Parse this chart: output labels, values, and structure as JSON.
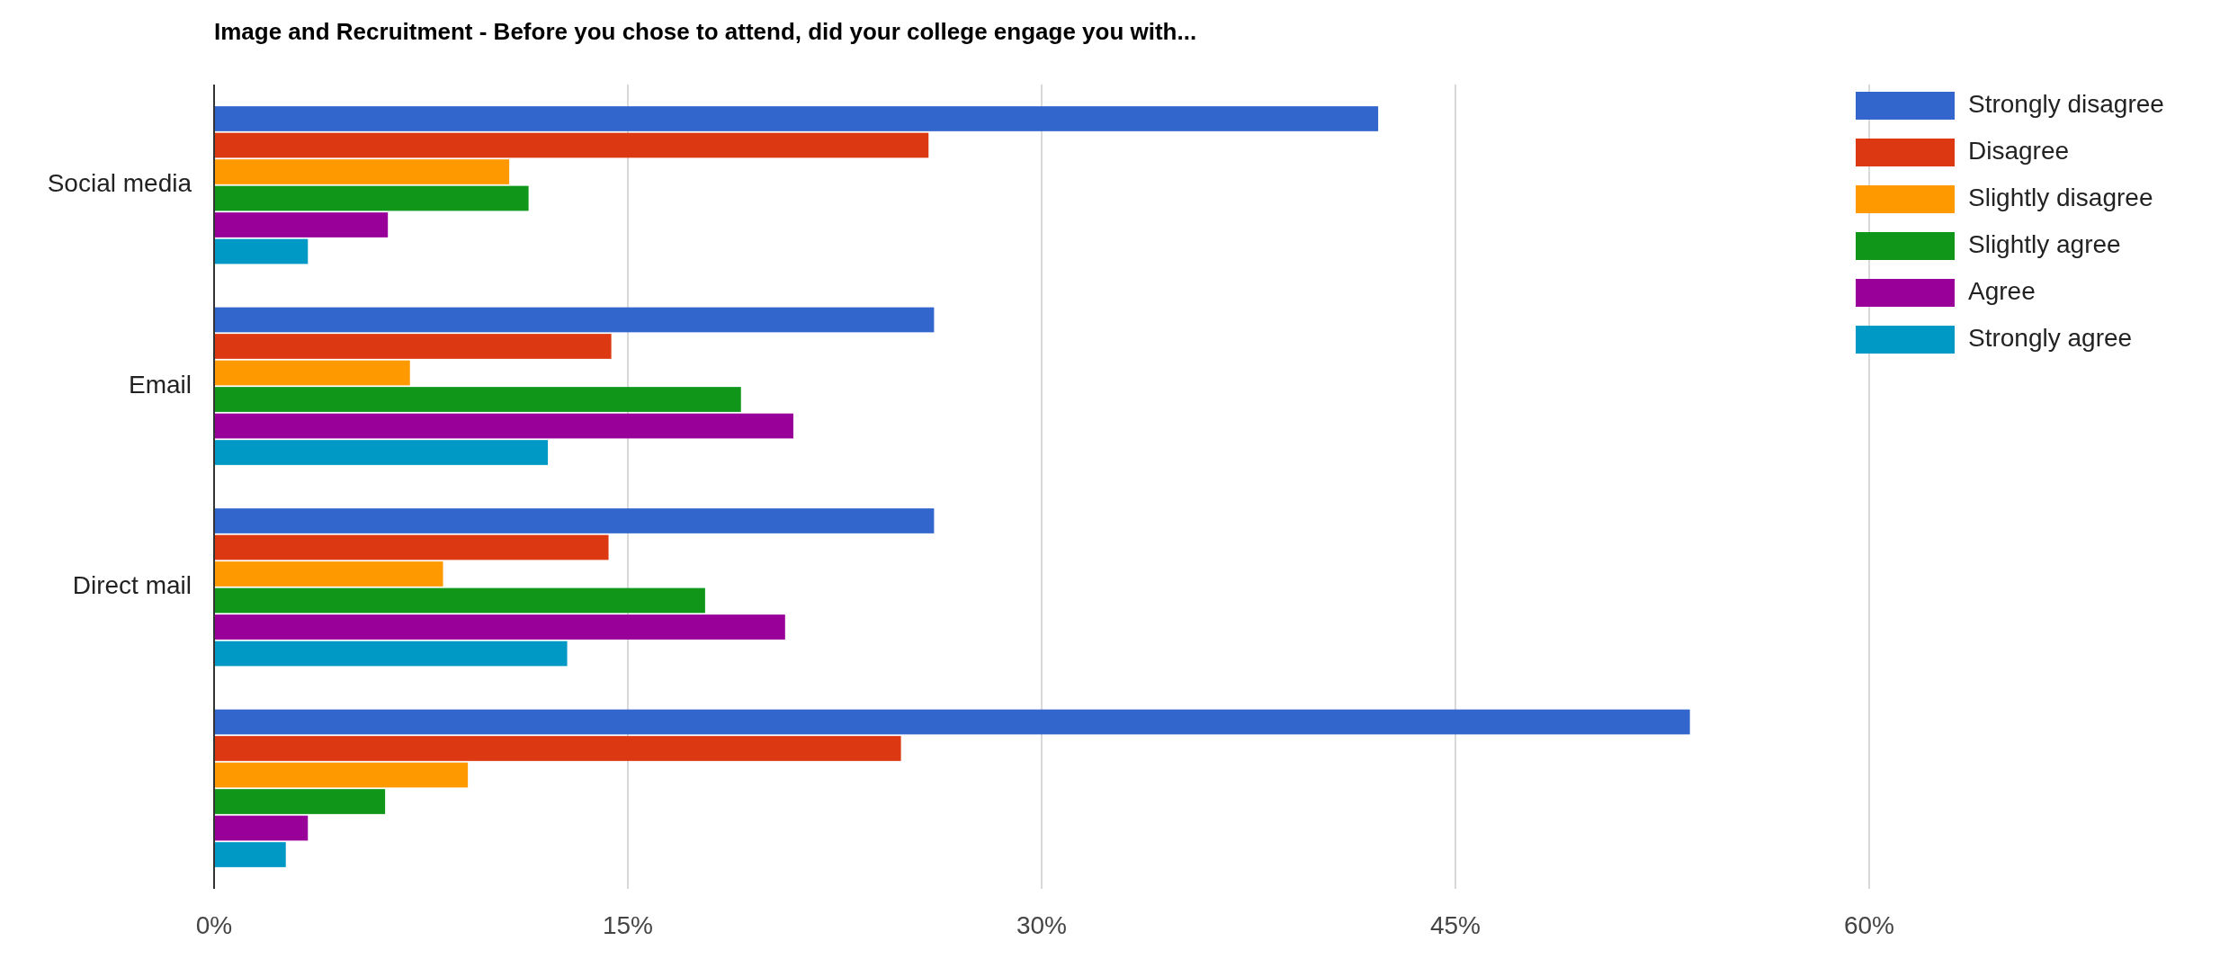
{
  "chart_data": {
    "type": "bar",
    "orientation": "horizontal",
    "title": "Image and Recruitment - Before you chose to attend, did your college engage you with...",
    "categories": [
      "Social media",
      "Email",
      "Direct mail",
      null
    ],
    "series": [
      {
        "name": "Strongly disagree",
        "color": "#3366cc",
        "values": [
          42.2,
          26.1,
          26.1,
          53.5
        ]
      },
      {
        "name": "Disagree",
        "color": "#dc3912",
        "values": [
          25.9,
          14.4,
          14.3,
          24.9
        ]
      },
      {
        "name": "Slightly disagree",
        "color": "#ff9900",
        "values": [
          10.7,
          7.1,
          8.3,
          9.2
        ]
      },
      {
        "name": "Slightly agree",
        "color": "#109618",
        "values": [
          11.4,
          19.1,
          17.8,
          6.2
        ]
      },
      {
        "name": "Agree",
        "color": "#990099",
        "values": [
          6.3,
          21.0,
          20.7,
          3.4
        ]
      },
      {
        "name": "Strongly agree",
        "color": "#0099c6",
        "values": [
          3.4,
          12.1,
          12.8,
          2.6
        ]
      }
    ],
    "xlim": [
      0,
      60
    ],
    "xticks": [
      {
        "value": 0,
        "label": "0%"
      },
      {
        "value": 15,
        "label": "15%"
      },
      {
        "value": 30,
        "label": "30%"
      },
      {
        "value": 45,
        "label": "45%"
      },
      {
        "value": 60,
        "label": "60%"
      }
    ],
    "grid": "x",
    "legend": "right"
  }
}
